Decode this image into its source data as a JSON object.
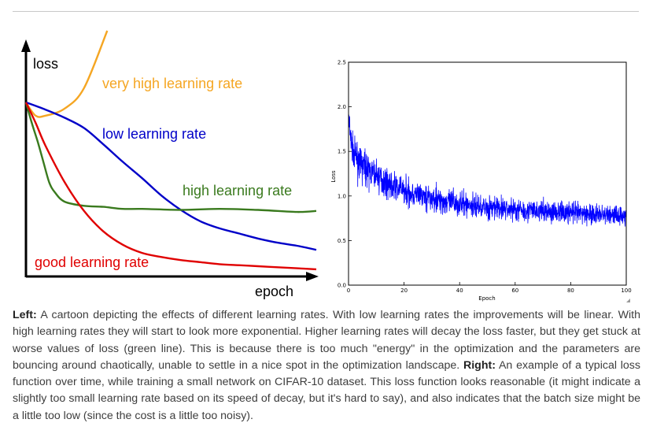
{
  "chart_data": [
    {
      "type": "line",
      "xlabel": "epoch",
      "ylabel": "loss",
      "series": [
        {
          "name": "very high learning rate",
          "color": "#f5a623",
          "points": [
            [
              0,
              8.5
            ],
            [
              0.05,
              7.85
            ],
            [
              0.1,
              7.85
            ],
            [
              0.2,
              8.2
            ],
            [
              0.3,
              9.2
            ],
            [
              0.42,
              12
            ]
          ]
        },
        {
          "name": "low learning rate",
          "color": "#0000c8",
          "points": [
            [
              0,
              8.5
            ],
            [
              0.1,
              8.15
            ],
            [
              0.2,
              7.75
            ],
            [
              0.3,
              7.25
            ],
            [
              0.4,
              6.45
            ],
            [
              0.5,
              5.6
            ],
            [
              0.6,
              4.8
            ],
            [
              0.7,
              3.95
            ],
            [
              0.8,
              3.25
            ],
            [
              0.9,
              2.7
            ],
            [
              1,
              2.35
            ],
            [
              1.1,
              2.1
            ],
            [
              1.2,
              1.85
            ],
            [
              1.3,
              1.65
            ],
            [
              1.4,
              1.5
            ],
            [
              1.5,
              1.3
            ]
          ]
        },
        {
          "name": "high learning rate",
          "color": "#3a7a1e",
          "points": [
            [
              0,
              8.5
            ],
            [
              0.03,
              7.5
            ],
            [
              0.06,
              6.6
            ],
            [
              0.09,
              5.6
            ],
            [
              0.12,
              4.6
            ],
            [
              0.15,
              4.1
            ],
            [
              0.2,
              3.65
            ],
            [
              0.3,
              3.45
            ],
            [
              0.4,
              3.4
            ],
            [
              0.5,
              3.3
            ],
            [
              0.6,
              3.3
            ],
            [
              0.8,
              3.25
            ],
            [
              1,
              3.3
            ],
            [
              1.2,
              3.25
            ],
            [
              1.4,
              3.15
            ],
            [
              1.5,
              3.2
            ]
          ]
        },
        {
          "name": "good learning rate",
          "color": "#e00000",
          "points": [
            [
              0,
              8.5
            ],
            [
              0.05,
              7.5
            ],
            [
              0.1,
              6.4
            ],
            [
              0.2,
              4.6
            ],
            [
              0.3,
              3.2
            ],
            [
              0.4,
              2.2
            ],
            [
              0.5,
              1.55
            ],
            [
              0.6,
              1.15
            ],
            [
              0.7,
              0.95
            ],
            [
              0.8,
              0.8
            ],
            [
              0.9,
              0.7
            ],
            [
              1,
              0.6
            ],
            [
              1.1,
              0.55
            ],
            [
              1.2,
              0.5
            ],
            [
              1.3,
              0.45
            ],
            [
              1.4,
              0.4
            ],
            [
              1.5,
              0.35
            ]
          ]
        }
      ]
    },
    {
      "type": "line",
      "xlabel": "Epoch",
      "ylabel": "Loss",
      "xlim": [
        0,
        100
      ],
      "ylim": [
        0.0,
        2.5
      ],
      "xticks": [
        "0",
        "20",
        "40",
        "60",
        "80",
        "100"
      ],
      "yticks": [
        "0.0",
        "0.5",
        "1.0",
        "1.5",
        "2.0",
        "2.5"
      ],
      "grid": false,
      "color": "#0000ff",
      "series": [
        {
          "x": [
            0,
            1,
            2,
            3,
            5,
            8,
            10,
            15,
            20,
            25,
            30,
            35,
            40,
            45,
            50,
            55,
            60,
            65,
            70,
            75,
            80,
            85,
            90,
            95,
            100
          ],
          "y": [
            1.85,
            1.58,
            1.48,
            1.42,
            1.35,
            1.27,
            1.22,
            1.13,
            1.06,
            1.01,
            0.97,
            0.94,
            0.91,
            0.89,
            0.87,
            0.86,
            0.85,
            0.84,
            0.83,
            0.82,
            0.81,
            0.8,
            0.79,
            0.79,
            0.78
          ],
          "noise": [
            0.3,
            0.27,
            0.26,
            0.25,
            0.25,
            0.24,
            0.24,
            0.23,
            0.22,
            0.22,
            0.21,
            0.21,
            0.2,
            0.2,
            0.2,
            0.19,
            0.19,
            0.19,
            0.18,
            0.18,
            0.18,
            0.18,
            0.17,
            0.17,
            0.17
          ]
        }
      ]
    }
  ],
  "caption": {
    "left_label": "Left:",
    "left_text": " A cartoon depicting the effects of different learning rates. With low learning rates the improvements will be linear. With high learning rates they will start to look more exponential. Higher learning rates will decay the loss faster, but they get stuck at worse values of loss (green line). This is because there is too much \"energy\" in the optimization and the parameters are bouncing around chaotically, unable to settle in a nice spot in the optimization landscape. ",
    "right_label": "Right:",
    "right_text": " An example of a typical loss function over time, while training a small network on CIFAR-10 dataset. This loss function looks reasonable (it might indicate a slightly too small learning rate based on its speed of decay, but it's hard to say), and also indicates that the batch size might be a little too low (since the cost is a little too noisy)."
  }
}
